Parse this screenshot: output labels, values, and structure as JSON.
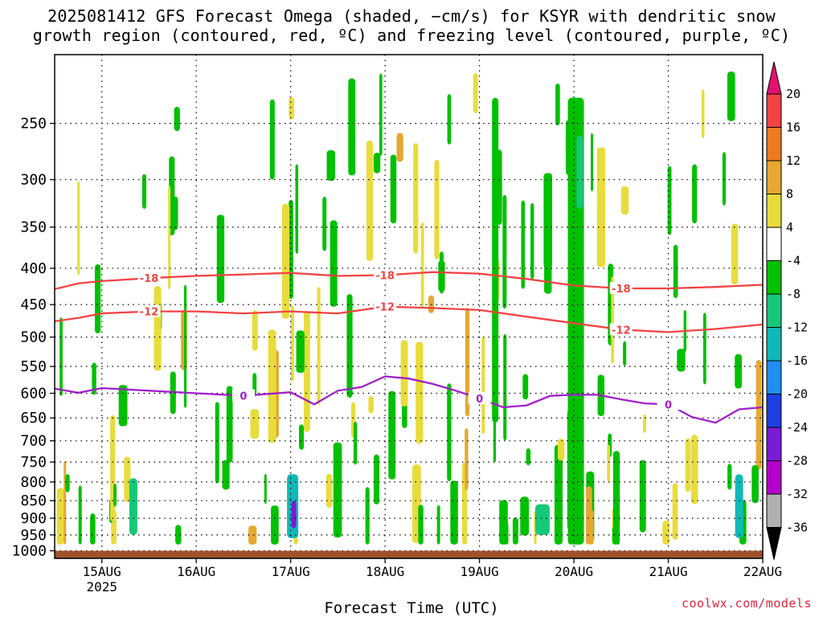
{
  "title_line1": "2025081412 GFS Forecast Omega (shaded, −cm/s) for KSYR with dendritic snow",
  "title_line2": "growth region (contoured, red, ºC) and freezing level (contoured, purple, ºC)",
  "credit": "coolwx.com/models",
  "chart_data": {
    "type": "heatmap",
    "xlabel": "Forecast Time (UTC)",
    "ylabel": "",
    "x_tick_labels": [
      "15AUG",
      "16AUG",
      "17AUG",
      "18AUG",
      "19AUG",
      "20AUG",
      "21AUG",
      "22AUG"
    ],
    "x_tick_sublabel": "2025",
    "x_ticks_hours": [
      12,
      36,
      60,
      84,
      108,
      132,
      156,
      180
    ],
    "xlim_hours": [
      0,
      180
    ],
    "y_tick_labels": [
      250,
      300,
      350,
      400,
      450,
      500,
      550,
      600,
      650,
      700,
      750,
      800,
      850,
      900,
      950,
      1000
    ],
    "ylim_hPa": [
      200,
      1025
    ],
    "y_scale": "log-pressure",
    "grid": true,
    "colorbar": {
      "labels": [
        20,
        16,
        12,
        8,
        4,
        -4,
        -8,
        -12,
        -16,
        -20,
        -24,
        -28,
        -32,
        -36
      ],
      "colors": [
        "#e2136f",
        "#f24343",
        "#ef7b20",
        "#e6a830",
        "#e8dc3c",
        "#ffffff",
        "#00c000",
        "#17c879",
        "#10b8b8",
        "#1e8ef0",
        "#1f3fe0",
        "#7a1bd6",
        "#b400cc",
        "#b0b0b0",
        "#000000"
      ]
    },
    "contours": [
      {
        "label": "-18",
        "color": "#f24343",
        "points": [
          [
            0,
            428
          ],
          [
            6,
            420
          ],
          [
            12,
            417
          ],
          [
            24,
            413
          ],
          [
            36,
            410
          ],
          [
            48,
            408
          ],
          [
            60,
            406
          ],
          [
            72,
            410
          ],
          [
            84,
            409
          ],
          [
            96,
            405
          ],
          [
            108,
            407
          ],
          [
            120,
            414
          ],
          [
            132,
            423
          ],
          [
            144,
            427
          ],
          [
            156,
            427
          ],
          [
            168,
            425
          ],
          [
            180,
            422
          ]
        ]
      },
      {
        "label": "-12",
        "color": "#f24343",
        "points": [
          [
            0,
            475
          ],
          [
            6,
            470
          ],
          [
            12,
            463
          ],
          [
            24,
            460
          ],
          [
            36,
            460
          ],
          [
            48,
            463
          ],
          [
            60,
            460
          ],
          [
            72,
            463
          ],
          [
            84,
            453
          ],
          [
            96,
            455
          ],
          [
            108,
            458
          ],
          [
            120,
            468
          ],
          [
            132,
            478
          ],
          [
            144,
            488
          ],
          [
            156,
            492
          ],
          [
            168,
            487
          ],
          [
            180,
            480
          ]
        ]
      },
      {
        "label": "0",
        "color": "#a020c8",
        "points": [
          [
            0,
            591
          ],
          [
            6,
            599
          ],
          [
            12,
            590
          ],
          [
            24,
            595
          ],
          [
            36,
            600
          ],
          [
            48,
            605
          ],
          [
            60,
            598
          ],
          [
            66,
            622
          ],
          [
            72,
            595
          ],
          [
            78,
            588
          ],
          [
            84,
            568
          ],
          [
            90,
            572
          ],
          [
            96,
            582
          ],
          [
            102,
            595
          ],
          [
            108,
            610
          ],
          [
            114,
            628
          ],
          [
            120,
            624
          ],
          [
            126,
            605
          ],
          [
            132,
            603
          ],
          [
            138,
            603
          ],
          [
            144,
            612
          ],
          [
            150,
            620
          ],
          [
            156,
            622
          ],
          [
            162,
            648
          ],
          [
            168,
            660
          ],
          [
            174,
            632
          ],
          [
            180,
            628
          ]
        ]
      }
    ],
    "surface_fill": {
      "color": "#a0522d",
      "from_hPa": 1000
    }
  }
}
